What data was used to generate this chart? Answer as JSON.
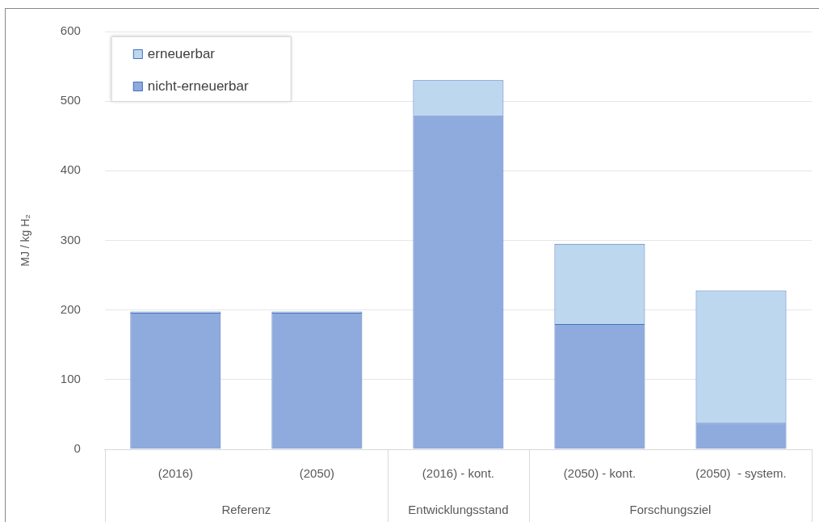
{
  "chart_data": {
    "type": "bar",
    "stacked": true,
    "ylabel": "MJ / kg H₂",
    "categories": [
      "(2016)",
      "(2050)",
      "(2016) - kont.",
      "(2050) - kont.",
      "(2050)  - system."
    ],
    "series": [
      {
        "name": "nicht-erneuerbar",
        "color": "#8faadc",
        "values": [
          196,
          196,
          480,
          180,
          38
        ]
      },
      {
        "name": "erneuerbar",
        "color": "#bdd7ee",
        "values": [
          2,
          2,
          50,
          115,
          190
        ]
      }
    ],
    "ylim": [
      0,
      600
    ],
    "yticks": [
      0,
      100,
      200,
      300,
      400,
      500,
      600
    ],
    "grid": "y",
    "legend": "top left",
    "annotations": [
      "Referenz",
      "Entwicklungsstand",
      "Forschungsziel"
    ]
  }
}
